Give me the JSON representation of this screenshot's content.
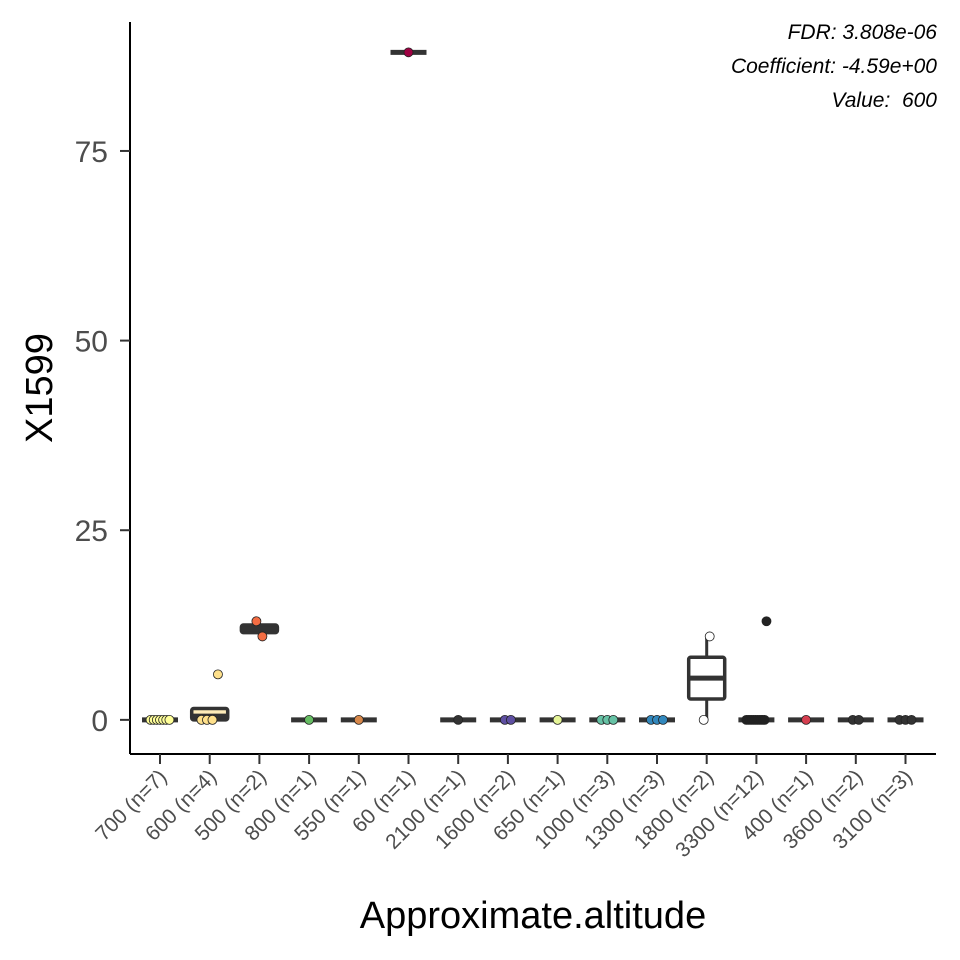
{
  "chart_data": {
    "type": "box",
    "xlabel": "Approximate.altitude",
    "ylabel": "X1599",
    "ylim": [
      -4.5,
      92
    ],
    "yticks": [
      0,
      25,
      50,
      75
    ],
    "grid": false,
    "legend": "none",
    "annotations": [
      "FDR: 3.808e-06",
      "Coefficient: -4.59e+00",
      "Value:  600"
    ],
    "categories": [
      "700 (n=7)",
      "600 (n=4)",
      "500 (n=2)",
      "800 (n=1)",
      "550 (n=1)",
      "60 (n=1)",
      "2100 (n=1)",
      "1600 (n=2)",
      "650 (n=1)",
      "1000 (n=3)",
      "1300 (n=3)",
      "1800 (n=2)",
      "3300 (n=12)",
      "400 (n=1)",
      "3600 (n=2)",
      "3100 (n=3)"
    ],
    "boxes": [
      {
        "q1": 0,
        "median": 0,
        "q3": 0,
        "whisker_low": 0,
        "whisker_high": 0,
        "color": "#ffff99",
        "points": [
          0,
          0,
          0,
          0,
          0,
          0,
          0
        ],
        "outliers": []
      },
      {
        "q1": 0,
        "median": 0.5,
        "q3": 1.5,
        "whisker_low": 0,
        "whisker_high": 1.5,
        "color": "#fee08b",
        "points": [
          0,
          0,
          0,
          6
        ],
        "outliers": [
          6
        ]
      },
      {
        "q1": 11.5,
        "median": 12,
        "q3": 12.5,
        "whisker_low": 11,
        "whisker_high": 13,
        "color": "#f46d43",
        "points": [
          13,
          11
        ],
        "outliers": []
      },
      {
        "q1": 0,
        "median": 0,
        "q3": 0,
        "whisker_low": 0,
        "whisker_high": 0,
        "color": "#66bd63",
        "points": [
          0
        ],
        "outliers": []
      },
      {
        "q1": 0,
        "median": 0,
        "q3": 0,
        "whisker_low": 0,
        "whisker_high": 0,
        "color": "#d8884a",
        "points": [
          0
        ],
        "outliers": []
      },
      {
        "q1": 88,
        "median": 88,
        "q3": 88,
        "whisker_low": 88,
        "whisker_high": 88,
        "color": "#9e0142",
        "points": [
          88
        ],
        "outliers": []
      },
      {
        "q1": 0,
        "median": 0,
        "q3": 0,
        "whisker_low": 0,
        "whisker_high": 0,
        "color": "#333333",
        "points": [
          0
        ],
        "outliers": []
      },
      {
        "q1": 0,
        "median": 0,
        "q3": 0,
        "whisker_low": 0,
        "whisker_high": 0,
        "color": "#5e4fa2",
        "points": [
          0,
          0
        ],
        "outliers": []
      },
      {
        "q1": 0,
        "median": 0,
        "q3": 0,
        "whisker_low": 0,
        "whisker_high": 0,
        "color": "#e6f598",
        "points": [
          0
        ],
        "outliers": []
      },
      {
        "q1": 0,
        "median": 0,
        "q3": 0,
        "whisker_low": 0,
        "whisker_high": 0,
        "color": "#66c2a5",
        "points": [
          0,
          0,
          0
        ],
        "outliers": []
      },
      {
        "q1": 0,
        "median": 0,
        "q3": 0,
        "whisker_low": 0,
        "whisker_high": 0,
        "color": "#3288bd",
        "points": [
          0,
          0,
          0
        ],
        "outliers": []
      },
      {
        "q1": 2.75,
        "median": 5.5,
        "q3": 8.25,
        "whisker_low": 0,
        "whisker_high": 11,
        "color": "#ffffff",
        "points": [
          0,
          11
        ],
        "outliers": [
          0,
          11
        ]
      },
      {
        "q1": 0,
        "median": 0,
        "q3": 0,
        "whisker_low": 0,
        "whisker_high": 0,
        "color": "#222222",
        "points": [
          0,
          0,
          0,
          0,
          0,
          0,
          0,
          0,
          0,
          0,
          0,
          13
        ],
        "outliers": [
          13
        ]
      },
      {
        "q1": 0,
        "median": 0,
        "q3": 0,
        "whisker_low": 0,
        "whisker_high": 0,
        "color": "#d53e4f",
        "points": [
          0
        ],
        "outliers": []
      },
      {
        "q1": 0,
        "median": 0,
        "q3": 0,
        "whisker_low": 0,
        "whisker_high": 0,
        "color": "#333333",
        "points": [
          0,
          0
        ],
        "outliers": []
      },
      {
        "q1": 0,
        "median": 0,
        "q3": 0,
        "whisker_low": 0,
        "whisker_high": 0,
        "color": "#333333",
        "points": [
          0,
          0,
          0
        ],
        "outliers": []
      }
    ]
  }
}
